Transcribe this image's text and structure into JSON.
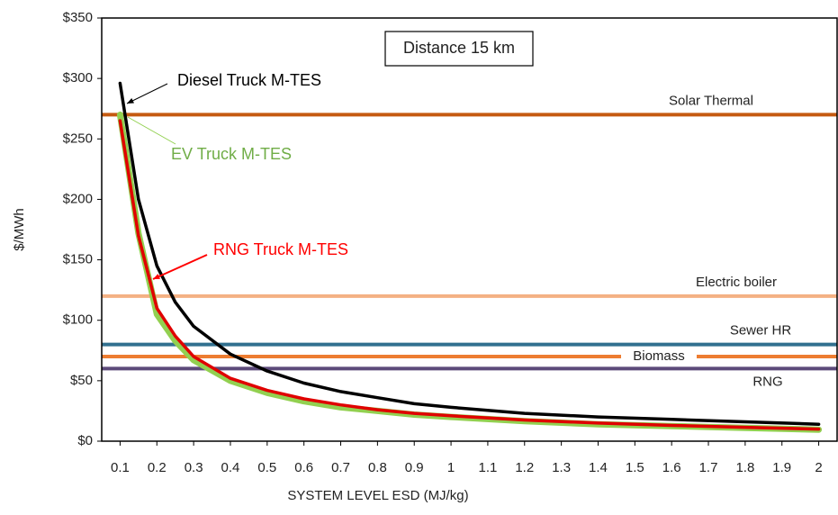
{
  "chart_data": {
    "type": "line",
    "x_label": "SYSTEM LEVEL ESD (MJ/kg)",
    "y_label": "$/MWh",
    "annotations": [
      "Distance 15 km"
    ],
    "x": [
      0.1,
      0.15,
      0.2,
      0.25,
      0.3,
      0.4,
      0.5,
      0.6,
      0.7,
      0.8,
      0.9,
      1,
      1.2,
      1.4,
      1.6,
      1.8,
      2
    ],
    "series": [
      {
        "name": "EV Truck M-TES",
        "color": "#92d050",
        "values": [
          270,
          172,
          105,
          83,
          67,
          50,
          40,
          33,
          28,
          25,
          22,
          20,
          16.5,
          14,
          12.5,
          11,
          9.5
        ]
      },
      {
        "name": "RNG Truck M-TES",
        "color": "#e00000",
        "values": [
          265,
          170,
          110,
          87,
          70,
          52,
          42,
          35,
          30,
          26,
          23,
          21,
          17.5,
          15,
          13,
          11.5,
          10
        ]
      },
      {
        "name": "Diesel Truck M-TES",
        "color": "#000000",
        "values": [
          296,
          200,
          145,
          115,
          95,
          72,
          58,
          48,
          41,
          36,
          31,
          28,
          23,
          20,
          18,
          16,
          14
        ]
      }
    ],
    "reference_lines": [
      {
        "name": "Solar Thermal",
        "value": 270,
        "color": "#c55a11"
      },
      {
        "name": "Electric boiler",
        "value": 120,
        "color": "#f4b183"
      },
      {
        "name": "Sewer HR",
        "value": 80,
        "color": "#31708f"
      },
      {
        "name": "Biomass",
        "value": 70,
        "color": "#ed7d31"
      },
      {
        "name": "RNG",
        "value": 60,
        "color": "#5c4a7a"
      }
    ],
    "xlim": [
      0.05,
      2.05
    ],
    "xticks": [
      0.1,
      0.2,
      0.3,
      0.4,
      0.5,
      0.6,
      0.7,
      0.8,
      0.9,
      1,
      1.1,
      1.2,
      1.3,
      1.4,
      1.5,
      1.6,
      1.7,
      1.8,
      1.9,
      2
    ],
    "ylim": [
      0,
      350
    ],
    "yticks": [
      {
        "value": 0,
        "label": "$0"
      },
      {
        "value": 50,
        "label": "$50"
      },
      {
        "value": 100,
        "label": "$100"
      },
      {
        "value": 150,
        "label": "$150"
      },
      {
        "value": 200,
        "label": "$200"
      },
      {
        "value": 250,
        "label": "$250"
      },
      {
        "value": 300,
        "label": "$300"
      },
      {
        "value": 350,
        "label": "$350"
      }
    ]
  }
}
